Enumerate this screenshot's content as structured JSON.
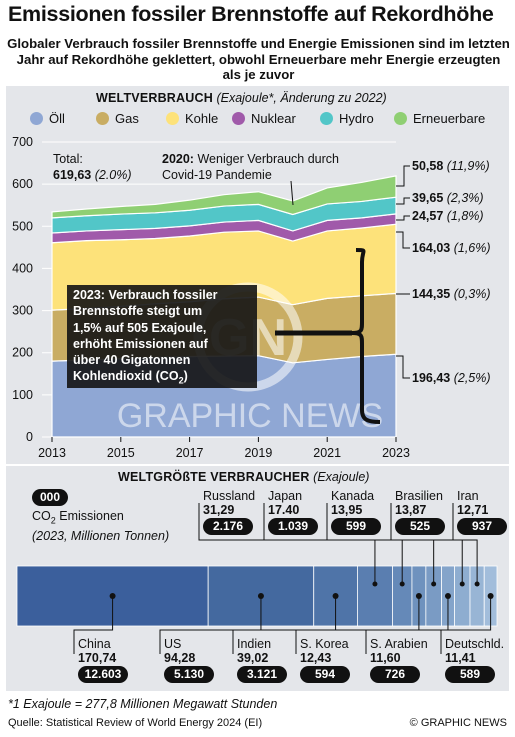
{
  "header": {
    "title": "Emissionen fossiler Brennstoffe auf Rekordhöhe",
    "subtitle": "Globaler Verbrauch fossiler Brennstoffe und Energie Emissionen sind im letzten Jahr auf Rekordhöhe geklettert, obwohl Erneuerbare mehr Energie erzeugten als je zuvor"
  },
  "section1": {
    "heading": "WELTVERBRAUCH",
    "subheading": "(Exajoule*, Änderung zu 2022)"
  },
  "legend": [
    {
      "name": "Öll",
      "color": "#8fa7d4"
    },
    {
      "name": "Gas",
      "color": "#c9ad63"
    },
    {
      "name": "Kohle",
      "color": "#fde27a"
    },
    {
      "name": "Nuklear",
      "color": "#a05aaa"
    },
    {
      "name": "Hydro",
      "color": "#52c6c8"
    },
    {
      "name": "Erneuerbare",
      "color": "#8fcf73"
    }
  ],
  "chart_data": [
    {
      "type": "area",
      "title": "WELTVERBRAUCH",
      "subtitle": "(Exajoule*, Änderung zu 2022)",
      "x": [
        2013,
        2014,
        2015,
        2016,
        2017,
        2018,
        2019,
        2020,
        2021,
        2022,
        2023
      ],
      "ylim": [
        0,
        700
      ],
      "yticks": [
        0,
        100,
        200,
        300,
        400,
        500,
        600,
        700
      ],
      "xticks": [
        2013,
        2015,
        2017,
        2019,
        2021,
        2023
      ],
      "series": [
        {
          "name": "Öll",
          "color": "#8fa7d4",
          "values": [
            180,
            183,
            186,
            189,
            191,
            192,
            193,
            176,
            184,
            191,
            196.43
          ]
        },
        {
          "name": "Gas",
          "color": "#c9ad63",
          "values": [
            121,
            122,
            124,
            127,
            130,
            136,
            139,
            138,
            145,
            144,
            144.35
          ]
        },
        {
          "name": "Kohle",
          "color": "#fde27a",
          "values": [
            160,
            161,
            158,
            155,
            156,
            158,
            157,
            151,
            160,
            161,
            164.03
          ]
        },
        {
          "name": "Nuklear",
          "color": "#a05aaa",
          "values": [
            23,
            23,
            24,
            24,
            24,
            24,
            25,
            24,
            25,
            24,
            24.57
          ]
        },
        {
          "name": "Hydro",
          "color": "#52c6c8",
          "values": [
            36,
            36,
            37,
            37,
            37,
            38,
            38,
            39,
            39,
            39,
            39.65
          ]
        },
        {
          "name": "Erneuerbare",
          "color": "#8fcf73",
          "values": [
            14,
            16,
            18,
            20,
            24,
            27,
            30,
            32,
            38,
            45,
            50.58
          ]
        }
      ],
      "total_label": "Total:",
      "total_value": "619,63",
      "total_change": "(2.0%)",
      "value_labels": [
        {
          "value": "50,58",
          "change": "(11,9%)"
        },
        {
          "value": "39,65",
          "change": "(2,3%)"
        },
        {
          "value": "24,57",
          "change": "(1,8%)"
        },
        {
          "value": "164,03",
          "change": "(1,6%)"
        },
        {
          "value": "144,35",
          "change": "(0,3%)"
        },
        {
          "value": "196,43",
          "change": "(2,5%)"
        }
      ],
      "annotation_2020_year": "2020:",
      "annotation_2020_text": "Weniger Verbrauch durch Covid-19 Pandemie",
      "annotation_2023_line1": "2023: Verbrauch fossiler",
      "annotation_2023_line2": "Brennstoffe steigt um",
      "annotation_2023_line3": "1,5% auf 505 Exajoule,",
      "annotation_2023_line4": "erhöht Emissionen auf",
      "annotation_2023_line5": "über 40 Gigatonnen",
      "annotation_2023_line6": "Kohlendioxid (CO",
      "annotation_2023_sub": "2",
      "annotation_2023_end": ")"
    },
    {
      "type": "bar",
      "title": "WELTGRÖßTE VERBRAUCHER",
      "subtitle": "(Exajoule)",
      "categories": [
        "China",
        "US",
        "Indien",
        "Russland",
        "Japan",
        "S. Korea",
        "Kanada",
        "S. Arabien",
        "Brasilien",
        "Iran",
        "Deutschld."
      ],
      "values": [
        170.74,
        94.28,
        39.02,
        31.29,
        17.4,
        12.43,
        13.95,
        11.6,
        13.87,
        12.71,
        11.41
      ],
      "value_labels": [
        "170,74",
        "94,28",
        "39,02",
        "31,29",
        "17.40",
        "12,43",
        "13,95",
        "11,60",
        "13,87",
        "12,71",
        "11,41"
      ],
      "emissions": [
        "12.603",
        "5.130",
        "3.121",
        "2.176",
        "1.039",
        "594",
        "599",
        "726",
        "525",
        "937",
        "589"
      ]
    }
  ],
  "section2": {
    "heading": "WELTGRÖßTE VERBRAUCHER",
    "subheading": "(Exajoule)",
    "key_pill": "000",
    "key_line1": "CO",
    "key_sub": "2",
    "key_line1b": " Emissionen",
    "key_line2": "(2023, Millionen Tonnen)"
  },
  "watermark": "GRAPHIC NEWS",
  "watermark_logo": "GN",
  "footer": {
    "footnote": "*1 Exajoule = 277,8 Millionen Megawatt Stunden",
    "source": "Quelle: Statistical Review of World Energy 2024 (EI)",
    "copyright": "© GRAPHIC NEWS"
  }
}
